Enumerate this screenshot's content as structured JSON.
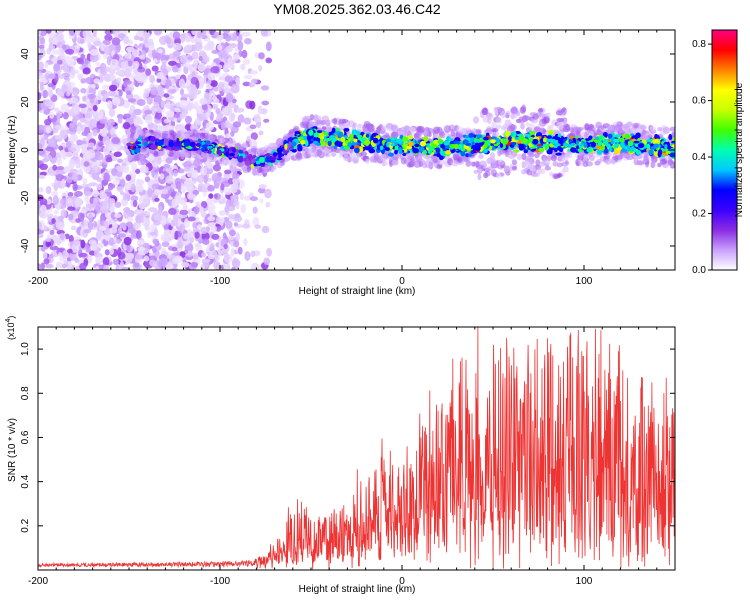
{
  "title": "YM08.2025.362.03.46.C42",
  "chart_data": [
    {
      "type": "heatmap",
      "name": "spectrogram",
      "xlabel": "Height of straight line (km)",
      "ylabel": "Frequency (Hz)",
      "xlim": [
        -200,
        150
      ],
      "ylim": [
        -50,
        50
      ],
      "xticks": [
        -200,
        -100,
        0,
        100
      ],
      "xtick_labels": [
        "-200",
        "-100",
        "0",
        "100"
      ],
      "yticks": [
        -40,
        -20,
        0,
        20,
        40
      ],
      "ytick_labels": [
        "-40",
        "-20",
        "0",
        "20",
        "40"
      ],
      "colorbar": {
        "label": "Normalized spectral amplitude",
        "range": [
          0,
          0.85
        ],
        "ticks": [
          0.0,
          0.2,
          0.4,
          0.6,
          0.8
        ],
        "tick_labels": [
          "0.0",
          "0.2",
          "0.4",
          "0.6",
          "0.8"
        ],
        "colors": [
          "#ffffff",
          "#c9a0ff",
          "#8a2be2",
          "#3a00ff",
          "#0000ff",
          "#00c8ff",
          "#00ffb0",
          "#40ff00",
          "#c8ff00",
          "#ffff00",
          "#ff8000",
          "#ff0000",
          "#ff0080"
        ]
      },
      "ridge_center": [
        {
          "x": -145,
          "y": 3
        },
        {
          "x": -110,
          "y": 2
        },
        {
          "x": -90,
          "y": -2
        },
        {
          "x": -80,
          "y": -5
        },
        {
          "x": -70,
          "y": -3
        },
        {
          "x": -60,
          "y": 3
        },
        {
          "x": -50,
          "y": 6
        },
        {
          "x": -40,
          "y": 5
        },
        {
          "x": -20,
          "y": 3
        },
        {
          "x": 0,
          "y": 2
        },
        {
          "x": 20,
          "y": 1
        },
        {
          "x": 40,
          "y": 2
        },
        {
          "x": 60,
          "y": 4
        },
        {
          "x": 80,
          "y": 3
        },
        {
          "x": 100,
          "y": 2
        },
        {
          "x": 120,
          "y": 3
        },
        {
          "x": 150,
          "y": 1
        }
      ],
      "noise_region_x": [
        -200,
        -85
      ]
    },
    {
      "type": "line",
      "name": "snr",
      "xlabel": "Height of straight line (km)",
      "ylabel": "SNR (10 * v/v)",
      "scale_label": "(x10",
      "scale_exponent": "4",
      "scale_close": ")",
      "xlim": [
        -200,
        150
      ],
      "ylim": [
        0,
        1.1
      ],
      "xticks": [
        -200,
        -100,
        0,
        100
      ],
      "xtick_labels": [
        "-200",
        "-100",
        "0",
        "100"
      ],
      "yticks": [
        0.2,
        0.4,
        0.6,
        0.8,
        1.0
      ],
      "ytick_labels": [
        "0.2",
        "0.4",
        "0.6",
        "0.8",
        "1.0"
      ],
      "color": "#ee3333",
      "envelope": [
        {
          "x": -200,
          "base": 0.015,
          "peak": 0.03
        },
        {
          "x": -120,
          "base": 0.015,
          "peak": 0.035
        },
        {
          "x": -90,
          "base": 0.015,
          "peak": 0.04
        },
        {
          "x": -75,
          "base": 0.02,
          "peak": 0.06
        },
        {
          "x": -60,
          "base": 0.05,
          "peak": 0.3
        },
        {
          "x": -40,
          "base": 0.06,
          "peak": 0.25
        },
        {
          "x": -20,
          "base": 0.08,
          "peak": 0.45
        },
        {
          "x": 0,
          "base": 0.12,
          "peak": 0.6
        },
        {
          "x": 20,
          "base": 0.15,
          "peak": 0.8
        },
        {
          "x": 40,
          "base": 0.15,
          "peak": 1.0
        },
        {
          "x": 60,
          "base": 0.15,
          "peak": 1.05
        },
        {
          "x": 80,
          "base": 0.12,
          "peak": 1.1
        },
        {
          "x": 100,
          "base": 0.1,
          "peak": 1.05
        },
        {
          "x": 120,
          "base": 0.1,
          "peak": 0.95
        },
        {
          "x": 150,
          "base": 0.1,
          "peak": 0.8
        }
      ]
    }
  ]
}
